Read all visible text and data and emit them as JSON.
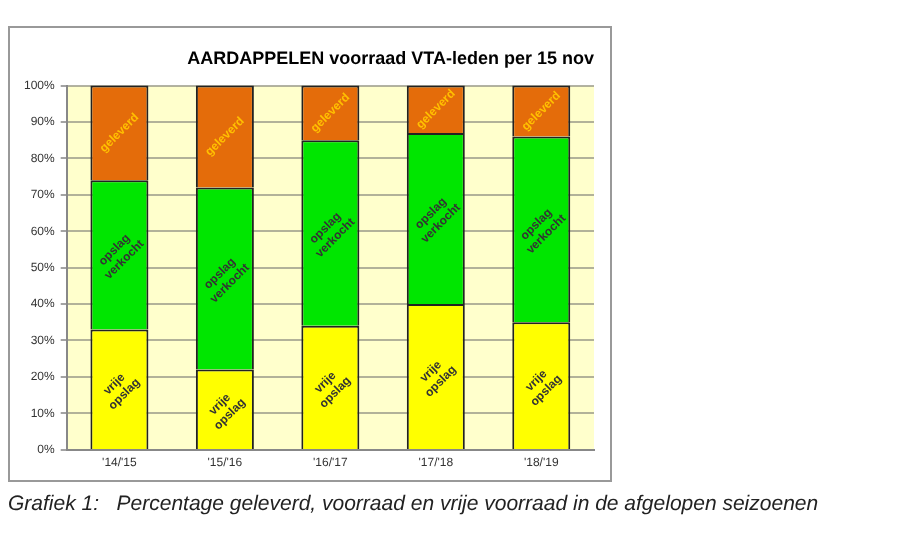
{
  "chart_data": {
    "type": "bar",
    "stacked": true,
    "title": "AARDAPPELEN voorraad VTA-leden per 15 nov",
    "categories": [
      "'14/'15",
      "'15/'16",
      "'16/'17",
      "'17/'18",
      "'18/'19"
    ],
    "series": [
      {
        "name": "vrije opslag",
        "color": "#ffff00",
        "values": [
          33,
          22,
          34,
          40,
          35
        ]
      },
      {
        "name": "opslag verkocht",
        "color": "#00e600",
        "values": [
          41,
          50,
          51,
          47,
          51
        ]
      },
      {
        "name": "geleverd",
        "color": "#e46c0a",
        "values": [
          26,
          28,
          15,
          13,
          14
        ]
      }
    ],
    "ylim": [
      0,
      100
    ],
    "yticks": [
      {
        "value": 0,
        "label": "0%"
      },
      {
        "value": 10,
        "label": "10%"
      },
      {
        "value": 20,
        "label": "20%"
      },
      {
        "value": 30,
        "label": "30%"
      },
      {
        "value": 40,
        "label": "40%"
      },
      {
        "value": 50,
        "label": "50%"
      },
      {
        "value": 60,
        "label": "60%"
      },
      {
        "value": 70,
        "label": "70%"
      },
      {
        "value": 80,
        "label": "80%"
      },
      {
        "value": 90,
        "label": "90%"
      },
      {
        "value": 100,
        "label": "100%"
      }
    ],
    "grid": "y",
    "legend": false,
    "annotations": [
      "Grafiek 1:   Percentage geleverd, voorraad en vrije voorraad in de afgelopen seizoenen"
    ]
  }
}
